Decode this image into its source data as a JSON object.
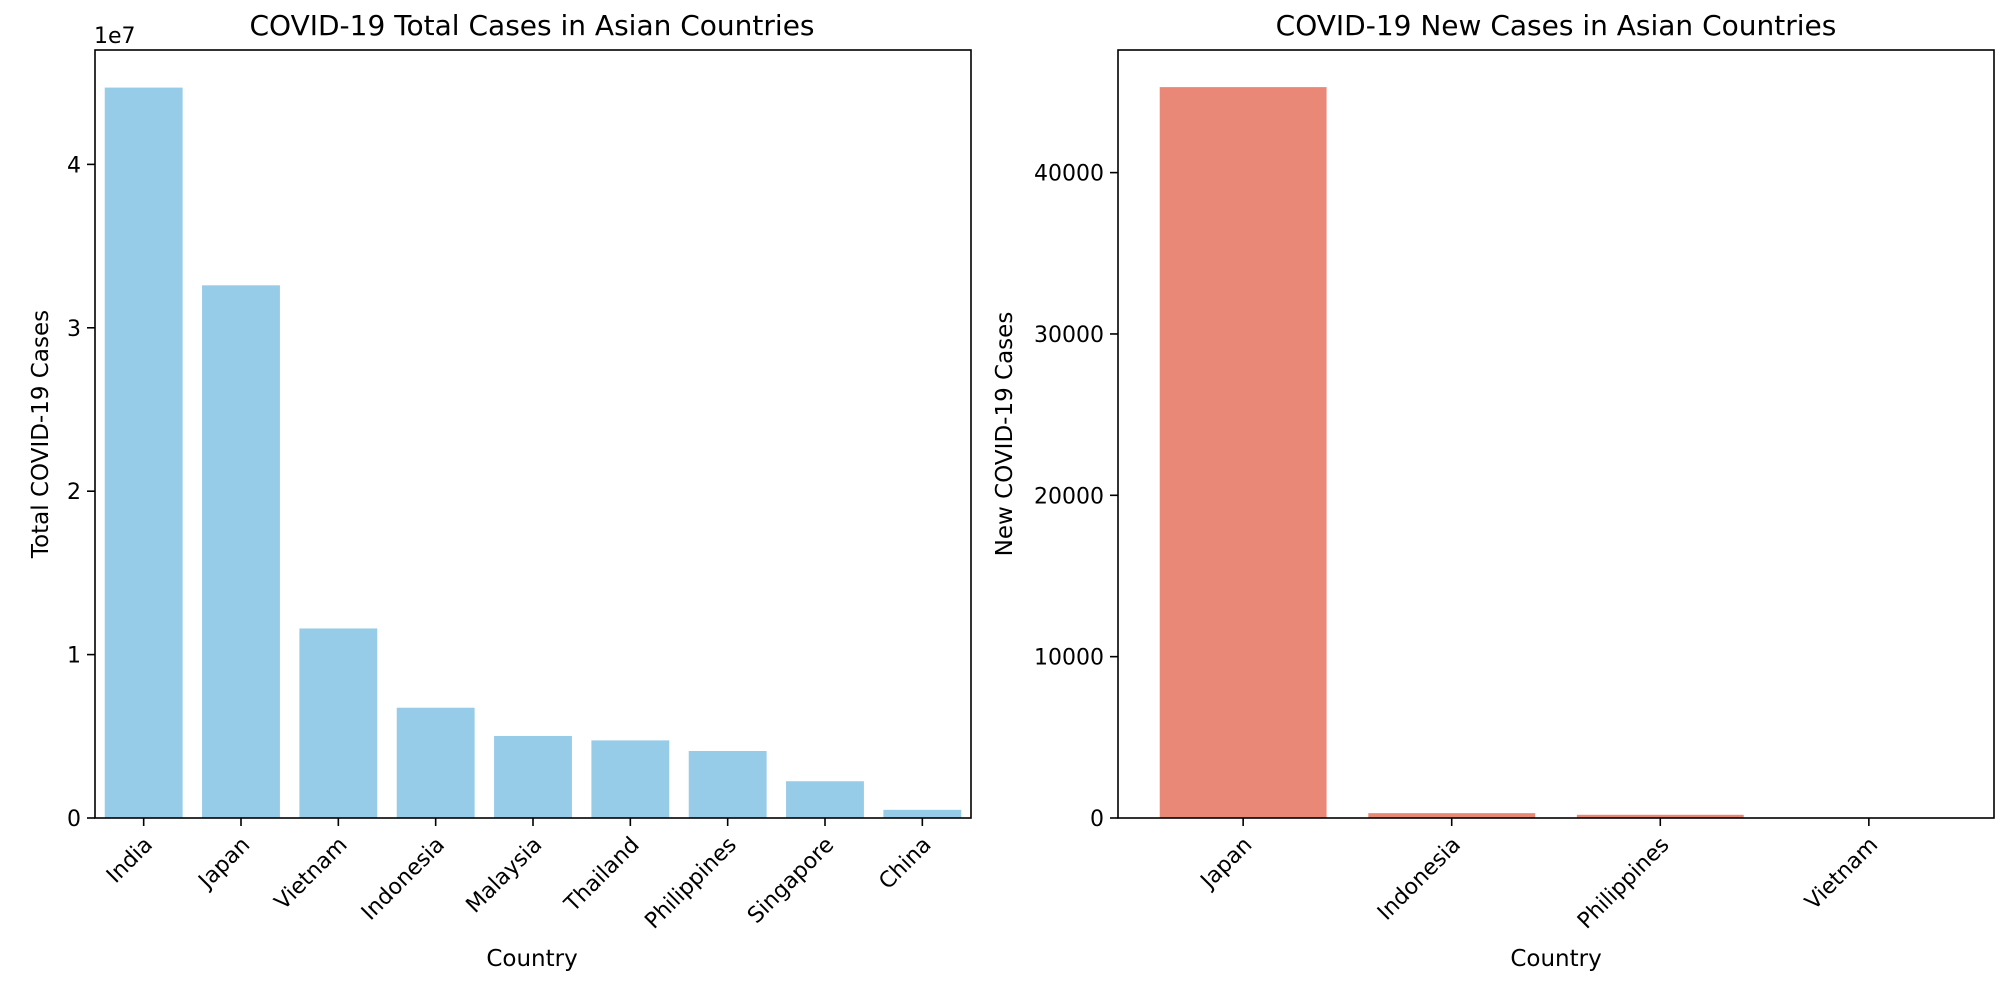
{
  "chart_data": [
    {
      "type": "bar",
      "title": "COVID-19 Total Cases in Asian Countries",
      "xlabel": "Country",
      "ylabel": "Total COVID-19 Cases",
      "offset_label": "1e7",
      "categories": [
        "India",
        "Japan",
        "Vietnam",
        "Indonesia",
        "Malaysia",
        "Thailand",
        "Philippines",
        "Singapore",
        "China"
      ],
      "values": [
        44700000,
        32600000,
        11600000,
        6750000,
        5020000,
        4750000,
        4100000,
        2250000,
        500000
      ],
      "ylim": [
        0,
        47000000
      ],
      "yticks": [
        0,
        10000000,
        20000000,
        30000000,
        40000000
      ],
      "ytick_labels": [
        "0",
        "1",
        "2",
        "3",
        "4"
      ],
      "bar_color": "#97CCE8",
      "grid": false
    },
    {
      "type": "bar",
      "title": "COVID-19 New Cases in Asian Countries",
      "xlabel": "Country",
      "ylabel": "New COVID-19 Cases",
      "categories": [
        "Japan",
        "Indonesia",
        "Philippines",
        "Vietnam"
      ],
      "values": [
        45300,
        300,
        200,
        0
      ],
      "ylim": [
        0,
        47600
      ],
      "yticks": [
        0,
        10000,
        20000,
        30000,
        40000
      ],
      "ytick_labels": [
        "0",
        "10000",
        "20000",
        "30000",
        "40000"
      ],
      "bar_color": "#EA8878",
      "grid": false
    }
  ]
}
